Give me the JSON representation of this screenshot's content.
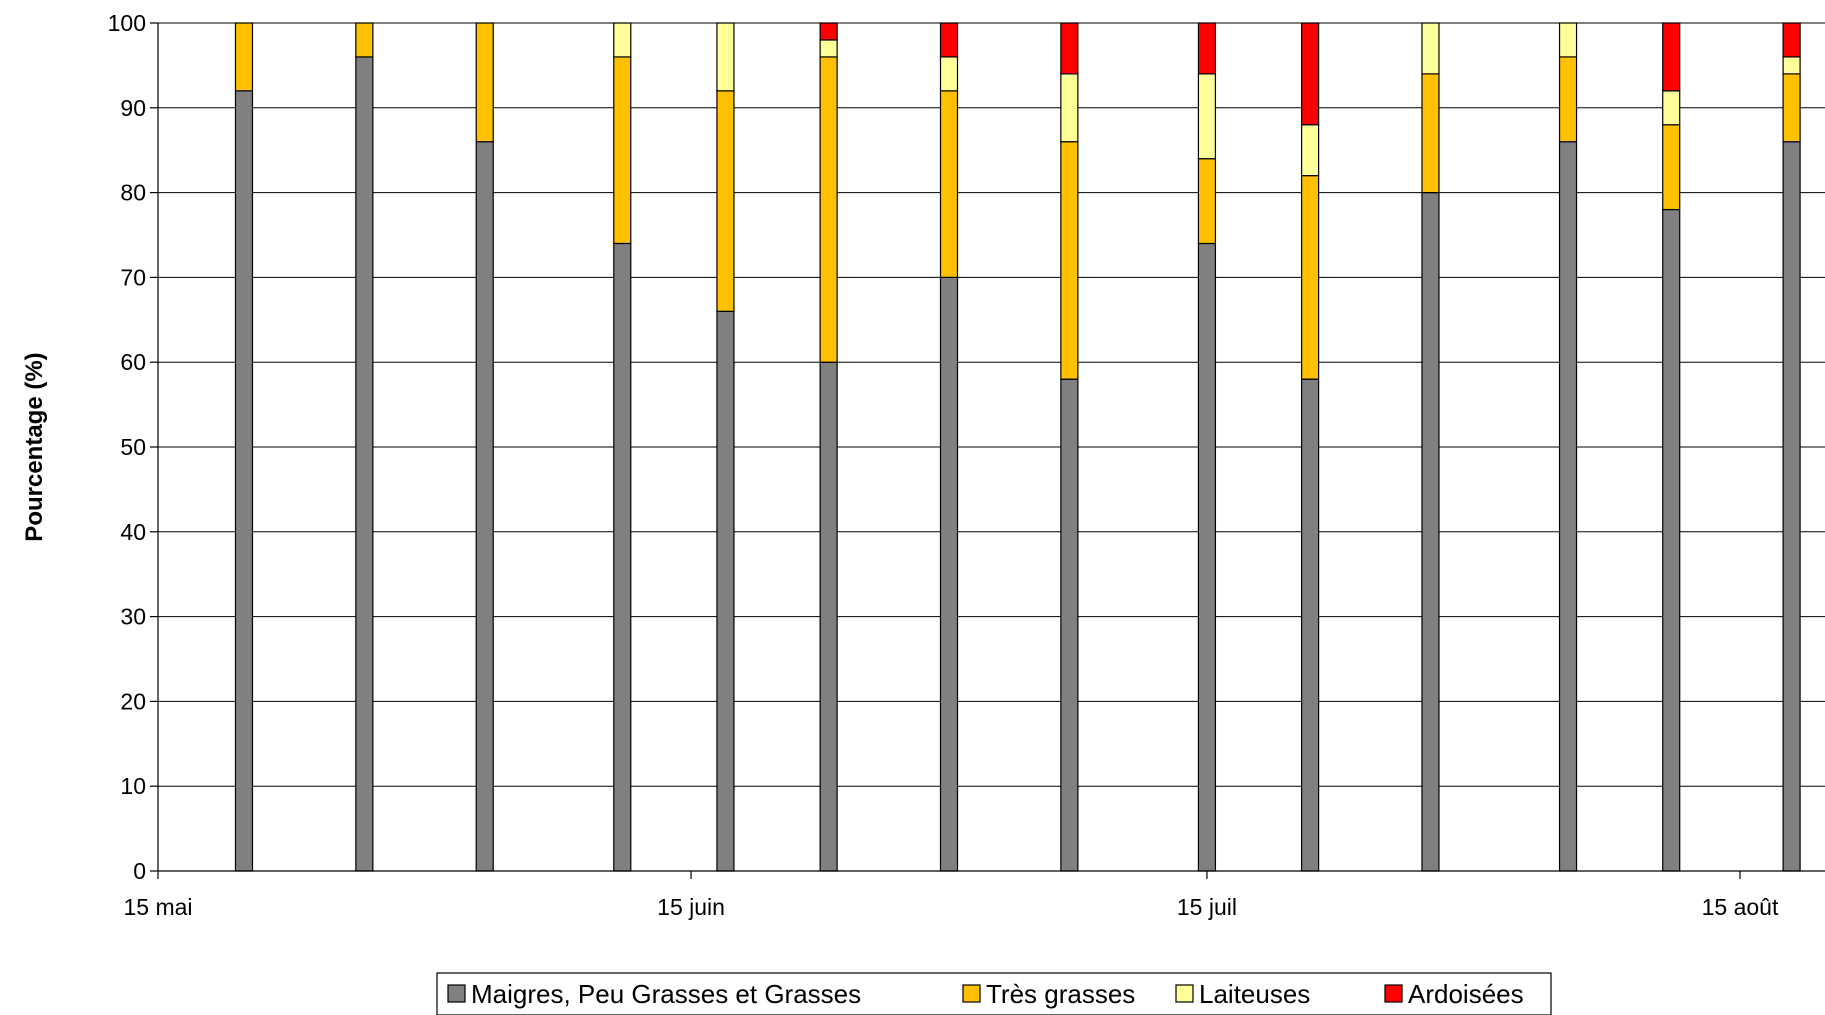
{
  "chart_data": {
    "type": "bar",
    "stacked": true,
    "title": "",
    "xlabel": "",
    "ylabel": "Pourcentage (%)",
    "ylim": [
      0,
      100
    ],
    "yticks": [
      0,
      10,
      20,
      30,
      40,
      50,
      60,
      70,
      80,
      90,
      100
    ],
    "xlim": [
      "2024-05-15",
      "2024-08-20"
    ],
    "xticks": [
      {
        "date": "2024-05-15",
        "label": "15 mai"
      },
      {
        "date": "2024-06-15",
        "label": "15 juin"
      },
      {
        "date": "2024-07-15",
        "label": "15 juil"
      },
      {
        "date": "2024-08-15",
        "label": "15 août"
      }
    ],
    "grid": "horizontal",
    "legend_position": "bottom",
    "x": [
      "2024-05-20",
      "2024-05-27",
      "2024-06-03",
      "2024-06-11",
      "2024-06-17",
      "2024-06-23",
      "2024-06-30",
      "2024-07-07",
      "2024-07-15",
      "2024-07-21",
      "2024-07-28",
      "2024-08-05",
      "2024-08-11",
      "2024-08-18"
    ],
    "series": [
      {
        "name": "Maigres, Peu Grasses et Grasses",
        "color": "#808080",
        "values": [
          92,
          96,
          86,
          74,
          66,
          60,
          70,
          58,
          74,
          58,
          80,
          86,
          78,
          86
        ]
      },
      {
        "name": "Très grasses",
        "color": "#ffc000",
        "values": [
          8,
          4,
          14,
          22,
          26,
          36,
          22,
          28,
          10,
          24,
          14,
          10,
          10,
          8
        ]
      },
      {
        "name": "Laiteuses",
        "color": "#ffff99",
        "values": [
          0,
          0,
          0,
          4,
          8,
          2,
          4,
          8,
          10,
          6,
          6,
          4,
          4,
          2
        ]
      },
      {
        "name": "Ardoisées",
        "color": "#ff0000",
        "values": [
          0,
          0,
          0,
          0,
          0,
          2,
          4,
          6,
          6,
          12,
          0,
          0,
          8,
          4
        ]
      }
    ]
  }
}
